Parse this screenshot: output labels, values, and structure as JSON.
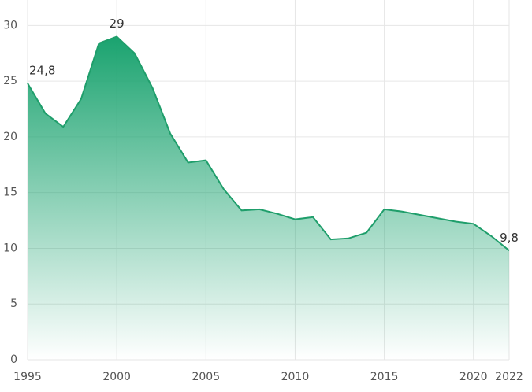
{
  "chart_data": {
    "type": "area",
    "x": [
      1995,
      1996,
      1997,
      1998,
      1999,
      2000,
      2001,
      2002,
      2003,
      2004,
      2005,
      2006,
      2007,
      2008,
      2009,
      2010,
      2011,
      2012,
      2013,
      2014,
      2015,
      2016,
      2017,
      2018,
      2019,
      2020,
      2021,
      2022
    ],
    "values": [
      24.8,
      22.1,
      20.9,
      23.4,
      28.4,
      29,
      27.5,
      24.4,
      20.3,
      17.7,
      17.9,
      15.3,
      13.4,
      13.5,
      13.1,
      12.6,
      12.8,
      10.8,
      10.9,
      11.4,
      13.5,
      13.3,
      13.0,
      12.7,
      12.4,
      12.2,
      11.1,
      9.8
    ],
    "value_labels": [
      "24,8",
      null,
      null,
      null,
      null,
      "29",
      null,
      null,
      null,
      null,
      null,
      null,
      null,
      null,
      null,
      null,
      null,
      null,
      null,
      null,
      null,
      null,
      null,
      null,
      null,
      null,
      null,
      "9,8"
    ],
    "color": "#1f9e6b",
    "xlim": [
      1995,
      2022
    ],
    "xticks": [
      1995,
      2000,
      2005,
      2010,
      2015,
      2020,
      2022
    ],
    "ylim": [
      0,
      32
    ],
    "yticks": [
      0,
      5,
      10,
      15,
      20,
      25,
      30
    ],
    "grid": true
  }
}
